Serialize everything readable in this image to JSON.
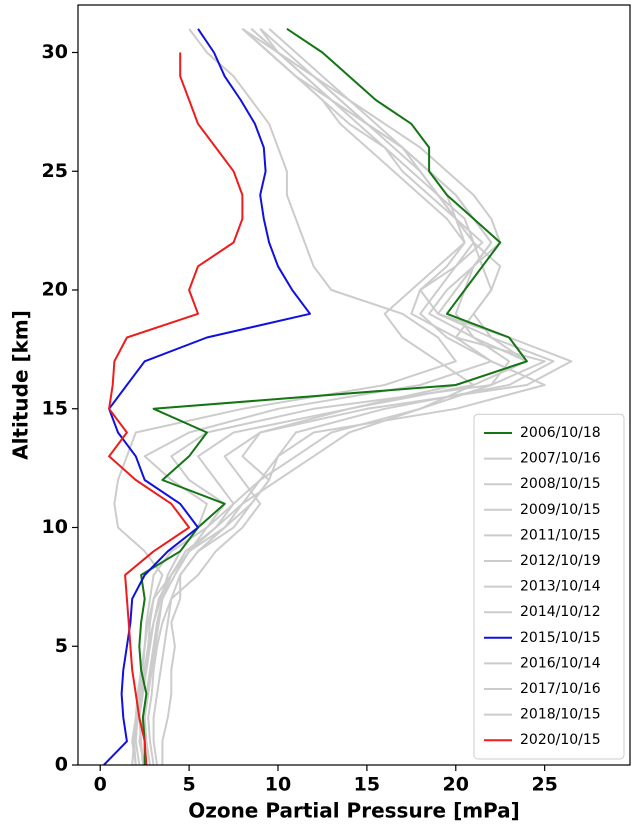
{
  "chart_data": {
    "type": "line",
    "x_label": "Ozone Partial Pressure [mPa]",
    "y_label": "Altitude [km]",
    "xlim": [
      -1.25,
      29.8
    ],
    "xticks": [
      0,
      5,
      10,
      15,
      20,
      25
    ],
    "ylim": [
      0,
      32
    ],
    "yticks": [
      0,
      5,
      10,
      15,
      20,
      25,
      30
    ],
    "legend": "lower right",
    "y": [
      0,
      1,
      2,
      3,
      4,
      5,
      6,
      7,
      8,
      9,
      10,
      11,
      12,
      13,
      14,
      15,
      16,
      17,
      18,
      19,
      20,
      21,
      22,
      23,
      24,
      25,
      26,
      27,
      28,
      29,
      30,
      31
    ],
    "series": [
      {
        "name": "2006/10/18",
        "color": "#137513",
        "values": [
          2.5,
          2.5,
          2.4,
          2.6,
          2.3,
          2.2,
          2.3,
          2.5,
          2.3,
          4.5,
          5.5,
          7.0,
          3.5,
          5.0,
          6.0,
          3.0,
          20.0,
          24.0,
          23.0,
          19.5,
          20.5,
          21.5,
          22.5,
          21.0,
          19.5,
          18.5,
          18.5,
          17.5,
          15.5,
          14.0,
          12.5,
          10.5
        ]
      },
      {
        "name": "2007/10/16",
        "color": "#cccccc",
        "values": [
          2.5,
          2.2,
          2.4,
          2.6,
          2.8,
          3.0,
          3.2,
          3.5,
          4.0,
          5.0,
          7.0,
          8.0,
          9.0,
          10.0,
          12.0,
          20.0,
          25.0,
          22.0,
          20.0,
          21.0,
          22.0,
          21.5,
          21.0,
          20.0,
          19.0,
          18.0,
          16.5,
          15.0,
          13.5,
          12.0,
          10.5,
          9.0
        ]
      },
      {
        "name": "2008/10/15",
        "color": "#cccccc",
        "values": [
          2.0,
          1.8,
          2.0,
          2.2,
          2.4,
          2.5,
          2.6,
          2.8,
          3.0,
          4.0,
          6.0,
          7.5,
          9.0,
          11.0,
          13.0,
          18.0,
          22.0,
          23.0,
          21.0,
          20.0,
          20.5,
          21.0,
          22.0,
          21.0,
          20.0,
          18.5,
          17.0,
          15.5,
          14.0,
          12.0,
          10.0,
          8.5
        ]
      },
      {
        "name": "2009/10/15",
        "color": "#cccccc",
        "values": [
          3.5,
          3.5,
          3.8,
          4.0,
          4.0,
          4.2,
          4.0,
          4.5,
          4.5,
          5.5,
          7.5,
          8.5,
          9.5,
          8.0,
          9.0,
          14.0,
          20.0,
          24.0,
          22.0,
          21.0,
          22.0,
          22.5,
          21.0,
          20.0,
          18.5,
          17.0,
          16.0,
          14.5,
          13.0,
          11.5,
          10.0,
          8.0
        ]
      },
      {
        "name": "2011/10/15",
        "color": "#cccccc",
        "values": [
          2.2,
          2.0,
          2.1,
          2.3,
          2.5,
          2.7,
          2.8,
          3.0,
          3.5,
          2.5,
          1.0,
          0.8,
          1.0,
          1.5,
          2.0,
          8.0,
          16.0,
          20.0,
          19.0,
          17.0,
          13.0,
          12.0,
          11.5,
          11.0,
          10.5,
          10.5,
          10.0,
          9.5,
          8.5,
          7.5,
          6.0,
          5.0
        ]
      },
      {
        "name": "2012/10/19",
        "color": "#cccccc",
        "values": [
          3.0,
          2.8,
          2.7,
          2.9,
          3.0,
          3.2,
          3.5,
          4.0,
          5.5,
          6.5,
          8.0,
          9.0,
          8.0,
          7.0,
          9.0,
          15.0,
          24.0,
          26.5,
          23.0,
          19.0,
          18.0,
          20.0,
          21.5,
          20.0,
          19.0,
          18.0,
          17.0,
          15.0,
          13.0,
          11.0,
          9.5,
          8.0
        ]
      },
      {
        "name": "2013/10/14",
        "color": "#cccccc",
        "values": [
          2.0,
          1.9,
          2.0,
          2.1,
          2.3,
          2.5,
          2.7,
          3.0,
          4.0,
          5.0,
          6.5,
          8.0,
          10.0,
          12.0,
          14.0,
          18.0,
          21.0,
          19.0,
          17.0,
          16.0,
          17.5,
          19.0,
          20.5,
          20.0,
          19.5,
          18.5,
          17.0,
          15.0,
          13.5,
          12.0,
          10.0,
          8.5
        ]
      },
      {
        "name": "2014/10/12",
        "color": "#cccccc",
        "values": [
          2.8,
          2.6,
          2.5,
          2.7,
          2.9,
          3.1,
          3.3,
          3.5,
          4.2,
          5.0,
          6.0,
          7.0,
          5.0,
          4.0,
          6.0,
          12.0,
          22.0,
          25.0,
          20.0,
          17.5,
          18.0,
          19.5,
          20.5,
          19.5,
          18.0,
          16.5,
          15.0,
          13.5,
          12.5,
          11.0,
          9.5,
          8.0
        ]
      },
      {
        "name": "2015/10/15",
        "color": "#1010e0",
        "values": [
          0.2,
          1.5,
          1.3,
          1.2,
          1.3,
          1.5,
          1.7,
          1.8,
          2.5,
          3.8,
          5.5,
          4.5,
          2.5,
          2.0,
          1.0,
          0.5,
          1.5,
          2.5,
          6.0,
          11.8,
          10.8,
          10.0,
          9.5,
          9.2,
          9.0,
          9.3,
          9.2,
          8.7,
          7.9,
          7.0,
          6.4,
          5.5
        ]
      },
      {
        "name": "2016/10/14",
        "color": "#cccccc",
        "values": [
          1.8,
          1.9,
          2.1,
          2.3,
          2.5,
          2.7,
          3.0,
          3.4,
          3.8,
          4.5,
          5.5,
          6.0,
          4.0,
          2.5,
          5.0,
          10.0,
          18.0,
          22.0,
          19.5,
          18.0,
          19.0,
          20.0,
          21.0,
          20.5,
          19.0,
          17.5,
          16.0,
          14.0,
          12.5,
          11.0,
          9.5,
          8.0
        ]
      },
      {
        "name": "2017/10/16",
        "color": "#cccccc",
        "values": [
          3.2,
          3.0,
          3.0,
          3.2,
          3.4,
          3.6,
          3.8,
          4.0,
          4.5,
          5.5,
          7.0,
          8.5,
          9.5,
          10.0,
          11.0,
          16.0,
          23.0,
          25.5,
          22.0,
          19.0,
          20.0,
          21.0,
          22.5,
          22.0,
          21.0,
          19.5,
          18.0,
          16.0,
          14.0,
          12.5,
          11.0,
          9.5
        ]
      },
      {
        "name": "2018/10/15",
        "color": "#cccccc",
        "values": [
          2.4,
          2.3,
          2.2,
          2.4,
          2.6,
          2.8,
          3.0,
          3.3,
          4.0,
          4.8,
          6.5,
          7.5,
          6.5,
          5.5,
          7.5,
          14.0,
          21.0,
          24.0,
          21.0,
          18.5,
          19.5,
          21.0,
          22.0,
          21.0,
          20.0,
          18.5,
          17.0,
          15.0,
          13.0,
          11.5,
          10.0,
          9.0
        ]
      },
      {
        "name": "2020/10/15",
        "color": "#ee1c1c",
        "values": [
          2.6,
          2.5,
          2.2,
          2.0,
          1.8,
          1.7,
          1.6,
          1.5,
          1.4,
          3.0,
          5.0,
          4.0,
          2.0,
          0.5,
          1.5,
          0.5,
          0.7,
          0.8,
          1.5,
          5.5,
          5.0,
          5.5,
          7.5,
          8.0,
          8.0,
          7.5,
          6.5,
          5.5,
          5.0,
          4.5,
          4.5,
          null
        ]
      }
    ]
  }
}
